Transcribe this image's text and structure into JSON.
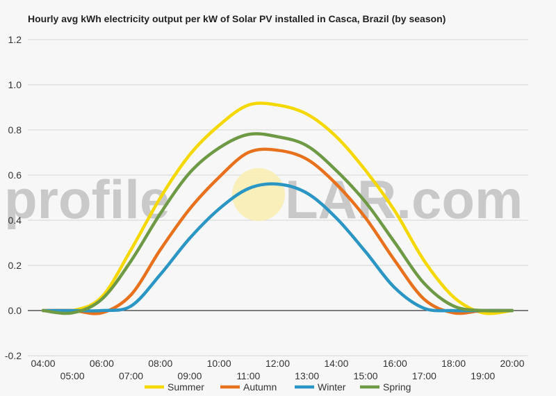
{
  "chart_data": {
    "type": "line",
    "title": "Hourly avg kWh electricity output per kW of Solar PV installed in Casca, Brazil (by season)",
    "xlabel": "",
    "ylabel": "",
    "ylim": [
      -0.2,
      1.2
    ],
    "yticks": [
      "-0.2",
      "0.0",
      "0.2",
      "0.4",
      "0.6",
      "0.8",
      "1.0",
      "1.2"
    ],
    "x": [
      "04:00",
      "05:00",
      "06:00",
      "07:00",
      "08:00",
      "09:00",
      "10:00",
      "11:00",
      "12:00",
      "13:00",
      "14:00",
      "15:00",
      "16:00",
      "17:00",
      "18:00",
      "19:00",
      "20:00"
    ],
    "grid": true,
    "legend_position": "bottom",
    "series": [
      {
        "name": "Summer",
        "color": "#f5d800",
        "values": [
          0.0,
          0.0,
          0.06,
          0.27,
          0.5,
          0.69,
          0.82,
          0.91,
          0.91,
          0.87,
          0.77,
          0.62,
          0.44,
          0.22,
          0.06,
          -0.01,
          0.0
        ]
      },
      {
        "name": "Autumn",
        "color": "#e8711e",
        "values": [
          0.0,
          0.0,
          -0.01,
          0.07,
          0.27,
          0.45,
          0.59,
          0.7,
          0.71,
          0.67,
          0.56,
          0.41,
          0.22,
          0.05,
          -0.01,
          0.0,
          0.0
        ]
      },
      {
        "name": "Winter",
        "color": "#2b96c4",
        "values": [
          0.0,
          0.0,
          0.0,
          0.02,
          0.16,
          0.32,
          0.45,
          0.54,
          0.56,
          0.52,
          0.41,
          0.26,
          0.1,
          0.01,
          0.0,
          0.0,
          0.0
        ]
      },
      {
        "name": "Spring",
        "color": "#6f9a45",
        "values": [
          0.0,
          -0.01,
          0.05,
          0.22,
          0.43,
          0.61,
          0.72,
          0.78,
          0.77,
          0.73,
          0.62,
          0.48,
          0.3,
          0.12,
          0.02,
          0.0,
          0.0
        ]
      }
    ]
  },
  "watermark": {
    "left": "profile",
    "right": "LAR.com"
  }
}
